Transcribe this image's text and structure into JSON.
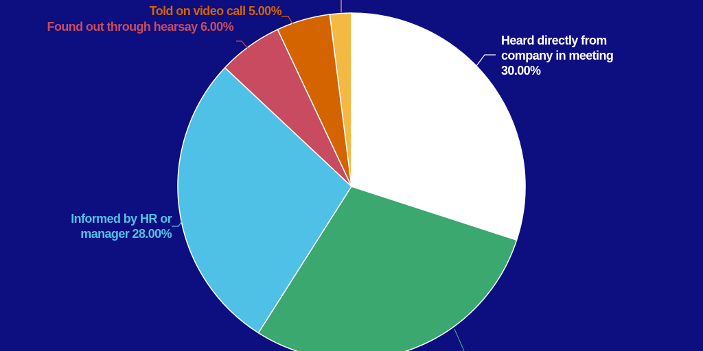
{
  "chart_data": {
    "type": "pie",
    "categories": [
      "Heard directly from company in meeting",
      null,
      "Informed by HR or manager",
      "Found out through hearsay",
      "Told on video call",
      null
    ],
    "values": [
      30,
      29,
      28,
      6,
      5,
      2
    ],
    "value_labels": [
      "30.00%",
      null,
      "28.00%",
      "6.00%",
      "5.00%",
      null
    ],
    "colors": [
      "#ffffff",
      "#3aa86f",
      "#50c1e6",
      "#c94b60",
      "#d46400",
      "#f4b942"
    ]
  }
}
